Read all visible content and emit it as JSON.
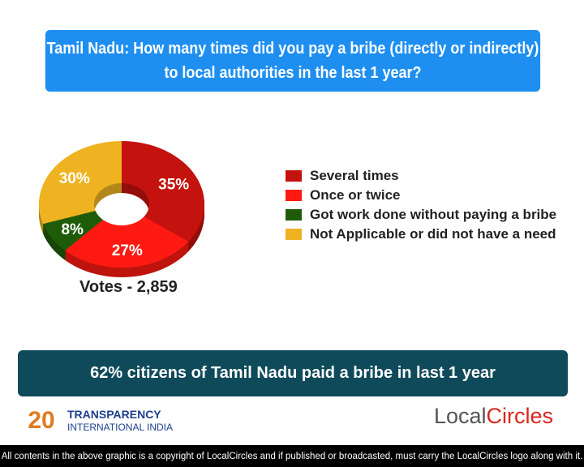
{
  "title": "Tamil Nadu: How many times did you pay a bribe (directly or indirectly) to local authorities in the last 1 year?",
  "chart_data": {
    "type": "pie",
    "variant": "donut",
    "categories": [
      "Several times",
      "Once or twice",
      "Got work done without paying a bribe",
      "Not Applicable or did not have a need"
    ],
    "values": [
      35,
      27,
      8,
      30
    ],
    "labels": [
      "35%",
      "27%",
      "8%",
      "30%"
    ],
    "colors": [
      "#c4120e",
      "#fe1a12",
      "#1f5c0a",
      "#efb321"
    ],
    "legend_position": "right"
  },
  "votes": "Votes - 2,859",
  "conclusion": "62% citizens of Tamil Nadu paid a bribe in last 1 year",
  "logos": {
    "ti_number": "20",
    "ti_line1": "TRANSPARENCY",
    "ti_line2": "INTERNATIONAL INDIA",
    "lc_part1": "Local",
    "lc_part2": "Circles"
  },
  "footer": "All contents in the above graphic is a copyright of LocalCircles and if published or broadcasted, must carry the LocalCircles logo along with it."
}
